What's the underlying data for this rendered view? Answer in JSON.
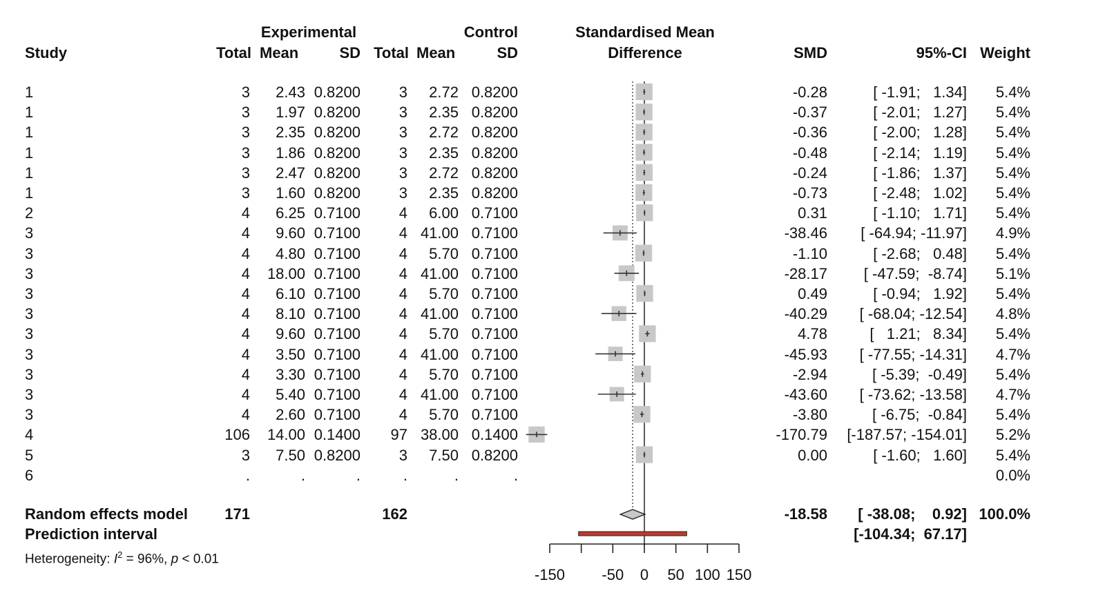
{
  "chart_data": {
    "type": "forest",
    "title": "Standardised Mean Difference",
    "xlabel": "Standardised Mean Difference",
    "xlim": [
      -150,
      150
    ],
    "x_ticks": [
      -150,
      -100,
      -50,
      0,
      50,
      100,
      150
    ],
    "x_tick_labels": [
      "-150",
      "",
      "-50",
      "0",
      "50",
      "100",
      "150"
    ],
    "headers": {
      "group_experimental": "Experimental",
      "group_control": "Control",
      "plot_title_line1": "Standardised Mean",
      "plot_title_line2": "Difference",
      "study": "Study",
      "e_total": "Total",
      "e_mean": "Mean",
      "e_sd": "SD",
      "c_total": "Total",
      "c_mean": "Mean",
      "c_sd": "SD",
      "smd": "SMD",
      "ci": "95%-CI",
      "weight": "Weight"
    },
    "studies": [
      {
        "study": "1",
        "e_total": "3",
        "e_mean": "2.43",
        "e_sd": "0.8200",
        "c_total": "3",
        "c_mean": "2.72",
        "c_sd": "0.8200",
        "smd": -0.28,
        "lower": -1.91,
        "upper": 1.34,
        "smd_text": "-0.28",
        "ci_text": "[ -1.91;   1.34]",
        "weight": "5.4%"
      },
      {
        "study": "1",
        "e_total": "3",
        "e_mean": "1.97",
        "e_sd": "0.8200",
        "c_total": "3",
        "c_mean": "2.35",
        "c_sd": "0.8200",
        "smd": -0.37,
        "lower": -2.01,
        "upper": 1.27,
        "smd_text": "-0.37",
        "ci_text": "[ -2.01;   1.27]",
        "weight": "5.4%"
      },
      {
        "study": "1",
        "e_total": "3",
        "e_mean": "2.35",
        "e_sd": "0.8200",
        "c_total": "3",
        "c_mean": "2.72",
        "c_sd": "0.8200",
        "smd": -0.36,
        "lower": -2.0,
        "upper": 1.28,
        "smd_text": "-0.36",
        "ci_text": "[ -2.00;   1.28]",
        "weight": "5.4%"
      },
      {
        "study": "1",
        "e_total": "3",
        "e_mean": "1.86",
        "e_sd": "0.8200",
        "c_total": "3",
        "c_mean": "2.35",
        "c_sd": "0.8200",
        "smd": -0.48,
        "lower": -2.14,
        "upper": 1.19,
        "smd_text": "-0.48",
        "ci_text": "[ -2.14;   1.19]",
        "weight": "5.4%"
      },
      {
        "study": "1",
        "e_total": "3",
        "e_mean": "2.47",
        "e_sd": "0.8200",
        "c_total": "3",
        "c_mean": "2.72",
        "c_sd": "0.8200",
        "smd": -0.24,
        "lower": -1.86,
        "upper": 1.37,
        "smd_text": "-0.24",
        "ci_text": "[ -1.86;   1.37]",
        "weight": "5.4%"
      },
      {
        "study": "1",
        "e_total": "3",
        "e_mean": "1.60",
        "e_sd": "0.8200",
        "c_total": "3",
        "c_mean": "2.35",
        "c_sd": "0.8200",
        "smd": -0.73,
        "lower": -2.48,
        "upper": 1.02,
        "smd_text": "-0.73",
        "ci_text": "[ -2.48;   1.02]",
        "weight": "5.4%"
      },
      {
        "study": "2",
        "e_total": "4",
        "e_mean": "6.25",
        "e_sd": "0.7100",
        "c_total": "4",
        "c_mean": "6.00",
        "c_sd": "0.7100",
        "smd": 0.31,
        "lower": -1.1,
        "upper": 1.71,
        "smd_text": "0.31",
        "ci_text": "[ -1.10;   1.71]",
        "weight": "5.4%"
      },
      {
        "study": "3",
        "e_total": "4",
        "e_mean": "9.60",
        "e_sd": "0.7100",
        "c_total": "4",
        "c_mean": "41.00",
        "c_sd": "0.7100",
        "smd": -38.46,
        "lower": -64.94,
        "upper": -11.97,
        "smd_text": "-38.46",
        "ci_text": "[ -64.94; -11.97]",
        "weight": "4.9%"
      },
      {
        "study": "3",
        "e_total": "4",
        "e_mean": "4.80",
        "e_sd": "0.7100",
        "c_total": "4",
        "c_mean": "5.70",
        "c_sd": "0.7100",
        "smd": -1.1,
        "lower": -2.68,
        "upper": 0.48,
        "smd_text": "-1.10",
        "ci_text": "[ -2.68;   0.48]",
        "weight": "5.4%"
      },
      {
        "study": "3",
        "e_total": "4",
        "e_mean": "18.00",
        "e_sd": "0.7100",
        "c_total": "4",
        "c_mean": "41.00",
        "c_sd": "0.7100",
        "smd": -28.17,
        "lower": -47.59,
        "upper": -8.74,
        "smd_text": "-28.17",
        "ci_text": "[ -47.59;  -8.74]",
        "weight": "5.1%"
      },
      {
        "study": "3",
        "e_total": "4",
        "e_mean": "6.10",
        "e_sd": "0.7100",
        "c_total": "4",
        "c_mean": "5.70",
        "c_sd": "0.7100",
        "smd": 0.49,
        "lower": -0.94,
        "upper": 1.92,
        "smd_text": "0.49",
        "ci_text": "[ -0.94;   1.92]",
        "weight": "5.4%"
      },
      {
        "study": "3",
        "e_total": "4",
        "e_mean": "8.10",
        "e_sd": "0.7100",
        "c_total": "4",
        "c_mean": "41.00",
        "c_sd": "0.7100",
        "smd": -40.29,
        "lower": -68.04,
        "upper": -12.54,
        "smd_text": "-40.29",
        "ci_text": "[ -68.04; -12.54]",
        "weight": "4.8%"
      },
      {
        "study": "3",
        "e_total": "4",
        "e_mean": "9.60",
        "e_sd": "0.7100",
        "c_total": "4",
        "c_mean": "5.70",
        "c_sd": "0.7100",
        "smd": 4.78,
        "lower": 1.21,
        "upper": 8.34,
        "smd_text": "4.78",
        "ci_text": "[   1.21;   8.34]",
        "weight": "5.4%"
      },
      {
        "study": "3",
        "e_total": "4",
        "e_mean": "3.50",
        "e_sd": "0.7100",
        "c_total": "4",
        "c_mean": "41.00",
        "c_sd": "0.7100",
        "smd": -45.93,
        "lower": -77.55,
        "upper": -14.31,
        "smd_text": "-45.93",
        "ci_text": "[ -77.55; -14.31]",
        "weight": "4.7%"
      },
      {
        "study": "3",
        "e_total": "4",
        "e_mean": "3.30",
        "e_sd": "0.7100",
        "c_total": "4",
        "c_mean": "5.70",
        "c_sd": "0.7100",
        "smd": -2.94,
        "lower": -5.39,
        "upper": -0.49,
        "smd_text": "-2.94",
        "ci_text": "[ -5.39;  -0.49]",
        "weight": "5.4%"
      },
      {
        "study": "3",
        "e_total": "4",
        "e_mean": "5.40",
        "e_sd": "0.7100",
        "c_total": "4",
        "c_mean": "41.00",
        "c_sd": "0.7100",
        "smd": -43.6,
        "lower": -73.62,
        "upper": -13.58,
        "smd_text": "-43.60",
        "ci_text": "[ -73.62; -13.58]",
        "weight": "4.7%"
      },
      {
        "study": "3",
        "e_total": "4",
        "e_mean": "2.60",
        "e_sd": "0.7100",
        "c_total": "4",
        "c_mean": "5.70",
        "c_sd": "0.7100",
        "smd": -3.8,
        "lower": -6.75,
        "upper": -0.84,
        "smd_text": "-3.80",
        "ci_text": "[ -6.75;  -0.84]",
        "weight": "5.4%"
      },
      {
        "study": "4",
        "e_total": "106",
        "e_mean": "14.00",
        "e_sd": "0.1400",
        "c_total": "97",
        "c_mean": "38.00",
        "c_sd": "0.1400",
        "smd": -170.79,
        "lower": -187.57,
        "upper": -154.01,
        "smd_text": "-170.79",
        "ci_text": "[-187.57; -154.01]",
        "weight": "5.2%"
      },
      {
        "study": "5",
        "e_total": "3",
        "e_mean": "7.50",
        "e_sd": "0.8200",
        "c_total": "3",
        "c_mean": "7.50",
        "c_sd": "0.8200",
        "smd": 0.0,
        "lower": -1.6,
        "upper": 1.6,
        "smd_text": "0.00",
        "ci_text": "[ -1.60;   1.60]",
        "weight": "5.4%"
      },
      {
        "study": "6",
        "e_total": ".",
        "e_mean": ".",
        "e_sd": ".",
        "c_total": ".",
        "c_mean": ".",
        "c_sd": ".",
        "smd": null,
        "lower": null,
        "upper": null,
        "smd_text": "",
        "ci_text": "",
        "weight": "0.0%"
      }
    ],
    "random_effects": {
      "label": "Random effects model",
      "e_total": "171",
      "c_total": "162",
      "smd": -18.58,
      "lower": -38.08,
      "upper": 0.92,
      "smd_text": "-18.58",
      "ci_text": "[ -38.08;    0.92]",
      "weight": "100.0%"
    },
    "prediction_interval": {
      "label": "Prediction interval",
      "lower": -104.34,
      "upper": 67.17,
      "ci_text": "[-104.34;  67.17]"
    },
    "heterogeneity": {
      "prefix": "Heterogeneity: ",
      "i_sym": "I",
      "sup": "2",
      "i2_text": " = 96%, ",
      "p_sym": "p",
      "p_text": " < 0.01"
    },
    "colors": {
      "square": "#c8c8c8",
      "diamond": "#c8c8c8",
      "prediction": "#c0392b",
      "line": "#333333"
    }
  }
}
